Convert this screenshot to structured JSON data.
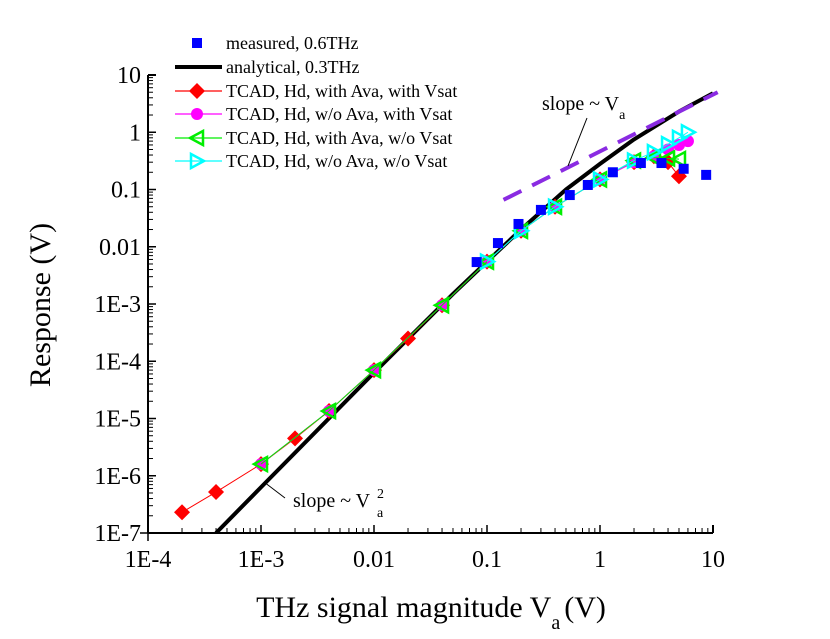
{
  "chart_data": {
    "type": "scatter",
    "title": "",
    "xlabel": "THz signal magnitude V_a (V)",
    "ylabel": "Response (V)",
    "xscale": "log",
    "yscale": "log",
    "xlim": [
      0.0001,
      10
    ],
    "ylim": [
      1e-07,
      10
    ],
    "grid": false,
    "legend_position": "upper left",
    "x_tick_labels": [
      "1E-4",
      "1E-3",
      "0.01",
      "0.1",
      "1",
      "10"
    ],
    "y_tick_labels": [
      "1E-7",
      "1E-6",
      "1E-5",
      "1E-4",
      "1E-3",
      "0.01",
      "0.1",
      "1",
      "10"
    ],
    "series": [
      {
        "name": "measured, 0.6THz",
        "style": "marker-only",
        "marker": "square",
        "color": "#0000ff",
        "x": [
          0.081,
          0.125,
          0.19,
          0.3,
          0.54,
          0.78,
          1.3,
          2.3,
          3.5,
          5.5,
          8.7
        ],
        "y": [
          0.0054,
          0.0116,
          0.025,
          0.044,
          0.08,
          0.12,
          0.2,
          0.29,
          0.29,
          0.23,
          0.18
        ]
      },
      {
        "name": "analytical, 0.3THz",
        "style": "line",
        "marker": "none",
        "color": "#000000",
        "x": [
          0.0004,
          0.001,
          0.01,
          0.05,
          0.1,
          0.2,
          0.5,
          1,
          2,
          5,
          10
        ],
        "y": [
          1e-07,
          6.3e-07,
          6.3e-05,
          0.0015,
          0.0055,
          0.02,
          0.1,
          0.28,
          0.75,
          2.3,
          4.8
        ]
      },
      {
        "name": "TCAD, Hd, with Ava, with Vsat",
        "style": "line+marker",
        "marker": "diamond",
        "color": "#ff0000",
        "x": [
          0.0002,
          0.0004,
          0.001,
          0.002,
          0.004,
          0.01,
          0.02,
          0.04,
          0.1,
          0.2,
          0.4,
          1,
          2,
          3,
          4,
          5
        ],
        "y": [
          2.3e-07,
          5.2e-07,
          1.6e-06,
          4.5e-06,
          1.35e-05,
          7e-05,
          0.00025,
          0.00095,
          0.0055,
          0.019,
          0.05,
          0.15,
          0.3,
          0.38,
          0.3,
          0.17
        ]
      },
      {
        "name": "TCAD, Hd, w/o Ava, with Vsat",
        "style": "line+marker",
        "marker": "circle",
        "color": "#ff00ff",
        "x": [
          0.001,
          0.004,
          0.01,
          0.04,
          0.1,
          0.2,
          0.4,
          1,
          2,
          3,
          4,
          5,
          6
        ],
        "y": [
          1.6e-06,
          1.35e-05,
          7e-05,
          0.00095,
          0.0055,
          0.019,
          0.05,
          0.15,
          0.3,
          0.38,
          0.5,
          0.6,
          0.7
        ]
      },
      {
        "name": "TCAD, Hd, with Ava, w/o Vsat",
        "style": "line+marker",
        "marker": "triangle-left",
        "color": "#00ee00",
        "x": [
          0.001,
          0.004,
          0.01,
          0.04,
          0.1,
          0.2,
          0.4,
          1,
          2,
          3,
          4,
          5
        ],
        "y": [
          1.6e-06,
          1.35e-05,
          7e-05,
          0.00095,
          0.0055,
          0.019,
          0.05,
          0.15,
          0.32,
          0.36,
          0.35,
          0.34
        ]
      },
      {
        "name": "TCAD, Hd, w/o Ava, w/o Vsat",
        "style": "line+marker",
        "marker": "triangle-right",
        "color": "#00ffff",
        "x": [
          0.1,
          0.2,
          0.4,
          1,
          2,
          3,
          4,
          5,
          6
        ],
        "y": [
          0.0055,
          0.019,
          0.05,
          0.15,
          0.32,
          0.45,
          0.62,
          0.8,
          1.0
        ]
      }
    ],
    "annotations": [
      {
        "text": "slope ~ V_a",
        "type": "dashed-line",
        "color": "#8a2be2",
        "x": [
          0.14,
          11
        ],
        "y": [
          0.066,
          5
        ]
      },
      {
        "text": "slope ~ V_a^2",
        "type": "leader-label",
        "target_x": 0.0012,
        "target_y": 9e-07
      }
    ]
  },
  "labels": {
    "xlabel_main": "THz signal magnitude V",
    "xlabel_sub": "a",
    "xlabel_unit": "(V)",
    "ylabel": "Response (V)",
    "slope1_main": "slope ~ V",
    "slope1_sub": "a",
    "slope2_main": "slope ~ V",
    "slope2_sub": "a",
    "slope2_sup": "2"
  }
}
